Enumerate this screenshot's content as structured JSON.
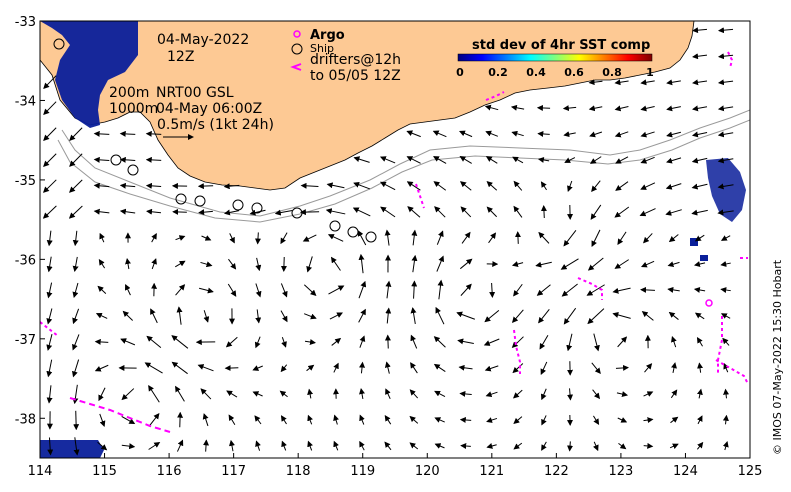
{
  "map": {
    "lon_range": [
      114,
      125
    ],
    "lat_range": [
      -38.5,
      -33
    ],
    "lon_ticks": [
      "114",
      "115",
      "116",
      "117",
      "118",
      "119",
      "120",
      "121",
      "122",
      "123",
      "124",
      "125"
    ],
    "lat_ticks": [
      "-33",
      "-34",
      "-35",
      "-36",
      "-37",
      "-38"
    ],
    "land_color": "#fdc994",
    "sst_std_color": "#0a1f9a",
    "drifter_color": "#ff00ff",
    "vector_color": "#000000",
    "contour_color": "#9a9a9a"
  },
  "annotations": {
    "date": "04-May-2022",
    "time": "12Z",
    "isobath_200": "200m",
    "isobath_1000": "1000m",
    "product": "NRT00 GSL",
    "product_time": "04-May 06:00Z",
    "scale_text": "0.5m/s (1kt 24h)"
  },
  "legend": {
    "argo": "Argo",
    "ship": "Ship",
    "drifters_line1": "drifters@12h",
    "drifters_line2": "to 05/05 12Z"
  },
  "colorbar": {
    "title": "std dev of 4hr SST comp",
    "ticks": [
      "0",
      "0.2",
      "0.4",
      "0.6",
      "0.8",
      "1"
    ],
    "colors": [
      "#00007f",
      "#0000ff",
      "#007fff",
      "#00ffff",
      "#7fff7f",
      "#ffff00",
      "#ff7f00",
      "#ff0000",
      "#7f0000"
    ]
  },
  "credit": "© IMOS 07-May-2022 15:30 Hobart"
}
